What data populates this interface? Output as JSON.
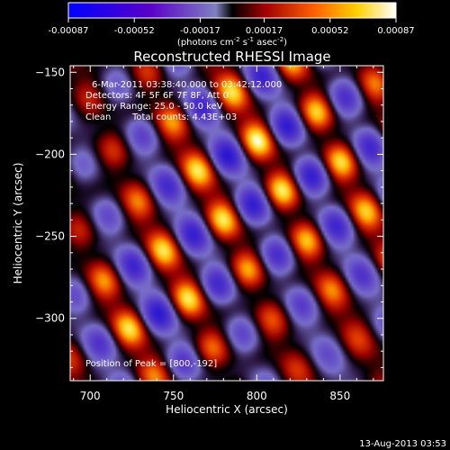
{
  "chart_data": {
    "type": "heatmap",
    "title": "Reconstructed RHESSI Image",
    "xlabel": "Heliocentric X (arcsec)",
    "ylabel": "Heliocentric Y (arcsec)",
    "xlim": [
      688,
      876
    ],
    "ylim": [
      -338,
      -146
    ],
    "x_ticks": [
      700,
      750,
      800,
      850
    ],
    "y_ticks": [
      -300,
      -250,
      -200,
      -150
    ],
    "colorbar": {
      "min": -0.00087,
      "max": 0.00087,
      "ticks": [
        "-0.00087",
        "-0.00052",
        "-0.00017",
        "0.00017",
        "0.00052",
        "0.00087"
      ],
      "unit_label": "(photons cm",
      "unit_sup1": "-2",
      "unit_mid": " s",
      "unit_sup2": "-1",
      "unit_mid2": " asec",
      "unit_sup3": "-2",
      "unit_end": ")"
    },
    "annotations": {
      "time": "6-Mar-2011 03:38:40.000 to 03:42:12.000",
      "detectors": "Detectors: 4F 5F 6F 7F 8F, Att 0",
      "energy": "Energy Range: 25.0 - 50.0 keV",
      "clean": "Clean",
      "counts": "Total counts: 4.43E+03",
      "peak": "Position of Peak = [800,-192]"
    },
    "peak": [
      800,
      -192
    ],
    "grid": false
  },
  "footer": {
    "timestamp": "13-Aug-2013 03:53"
  }
}
